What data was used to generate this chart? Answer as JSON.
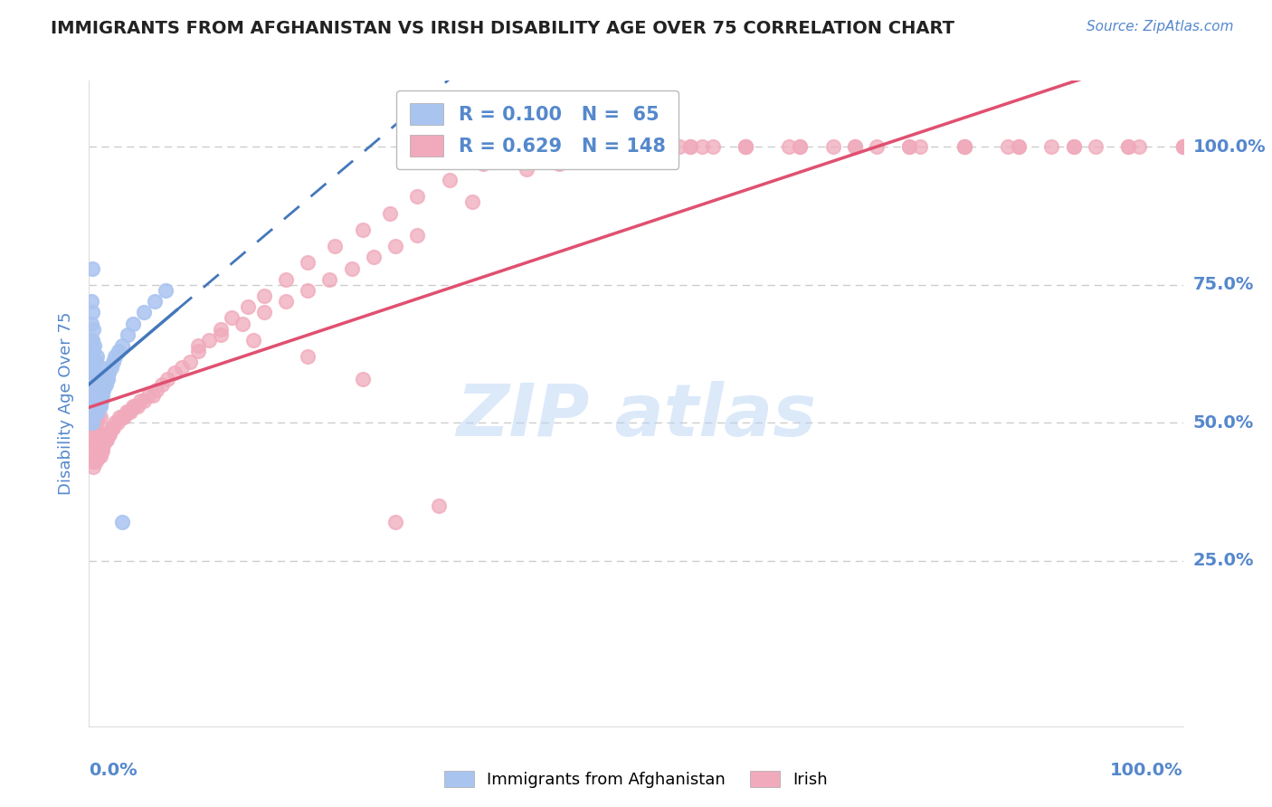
{
  "title": "IMMIGRANTS FROM AFGHANISTAN VS IRISH DISABILITY AGE OVER 75 CORRELATION CHART",
  "source_text": "Source: ZipAtlas.com",
  "ylabel": "Disability Age Over 75",
  "blue_R": 0.1,
  "blue_N": 65,
  "pink_R": 0.629,
  "pink_N": 148,
  "blue_color": "#aac4f0",
  "pink_color": "#f0aabb",
  "blue_trend_color": "#4477bb",
  "pink_trend_color": "#e05070",
  "watermark_color": "#b8d4f5",
  "ytick_labels": [
    "25.0%",
    "50.0%",
    "75.0%",
    "100.0%"
  ],
  "ytick_values": [
    0.25,
    0.5,
    0.75,
    1.0
  ],
  "xlim": [
    0.0,
    1.0
  ],
  "ylim": [
    -0.05,
    1.12
  ],
  "background_color": "#ffffff",
  "grid_color": "#cccccc",
  "title_color": "#222222",
  "axis_label_color": "#5588cc",
  "tick_label_color": "#5588cc",
  "blue_x": [
    0.001,
    0.001,
    0.001,
    0.002,
    0.002,
    0.002,
    0.002,
    0.002,
    0.002,
    0.002,
    0.002,
    0.003,
    0.003,
    0.003,
    0.003,
    0.003,
    0.003,
    0.003,
    0.004,
    0.004,
    0.004,
    0.004,
    0.004,
    0.004,
    0.005,
    0.005,
    0.005,
    0.005,
    0.005,
    0.006,
    0.006,
    0.006,
    0.006,
    0.007,
    0.007,
    0.007,
    0.007,
    0.008,
    0.008,
    0.008,
    0.009,
    0.009,
    0.01,
    0.01,
    0.01,
    0.011,
    0.012,
    0.013,
    0.014,
    0.015,
    0.016,
    0.017,
    0.018,
    0.02,
    0.022,
    0.024,
    0.027,
    0.03,
    0.035,
    0.04,
    0.05,
    0.06,
    0.07,
    0.03,
    0.003
  ],
  "blue_y": [
    0.52,
    0.55,
    0.58,
    0.5,
    0.53,
    0.56,
    0.59,
    0.62,
    0.65,
    0.68,
    0.72,
    0.5,
    0.53,
    0.56,
    0.59,
    0.62,
    0.65,
    0.7,
    0.51,
    0.54,
    0.57,
    0.6,
    0.63,
    0.67,
    0.52,
    0.55,
    0.58,
    0.61,
    0.64,
    0.52,
    0.55,
    0.58,
    0.61,
    0.52,
    0.55,
    0.58,
    0.62,
    0.52,
    0.55,
    0.59,
    0.53,
    0.56,
    0.53,
    0.56,
    0.6,
    0.54,
    0.55,
    0.56,
    0.57,
    0.57,
    0.58,
    0.58,
    0.59,
    0.6,
    0.61,
    0.62,
    0.63,
    0.64,
    0.66,
    0.68,
    0.7,
    0.72,
    0.74,
    0.32,
    0.78
  ],
  "pink_x": [
    0.001,
    0.001,
    0.001,
    0.002,
    0.002,
    0.002,
    0.002,
    0.002,
    0.003,
    0.003,
    0.003,
    0.003,
    0.004,
    0.004,
    0.004,
    0.004,
    0.005,
    0.005,
    0.005,
    0.005,
    0.006,
    0.006,
    0.006,
    0.007,
    0.007,
    0.007,
    0.008,
    0.008,
    0.008,
    0.009,
    0.009,
    0.01,
    0.01,
    0.01,
    0.011,
    0.012,
    0.012,
    0.013,
    0.014,
    0.015,
    0.016,
    0.017,
    0.018,
    0.019,
    0.02,
    0.021,
    0.022,
    0.024,
    0.026,
    0.028,
    0.03,
    0.032,
    0.034,
    0.036,
    0.038,
    0.04,
    0.042,
    0.044,
    0.047,
    0.05,
    0.054,
    0.058,
    0.062,
    0.067,
    0.072,
    0.078,
    0.085,
    0.092,
    0.1,
    0.11,
    0.12,
    0.13,
    0.145,
    0.16,
    0.18,
    0.2,
    0.225,
    0.25,
    0.275,
    0.3,
    0.33,
    0.36,
    0.39,
    0.42,
    0.45,
    0.48,
    0.51,
    0.54,
    0.57,
    0.6,
    0.64,
    0.68,
    0.72,
    0.76,
    0.8,
    0.84,
    0.88,
    0.92,
    0.96,
    1.0,
    0.6,
    0.65,
    0.7,
    0.75,
    0.8,
    0.85,
    0.9,
    0.95,
    1.0,
    1.0,
    0.6,
    0.65,
    0.7,
    0.75,
    0.8,
    0.85,
    0.9,
    0.95,
    1.0,
    0.55,
    0.5,
    0.45,
    0.4,
    0.35,
    0.55,
    0.28,
    0.32,
    0.15,
    0.2,
    0.25,
    0.1,
    0.12,
    0.14,
    0.16,
    0.18,
    0.2,
    0.22,
    0.24,
    0.26,
    0.28,
    0.3,
    0.35,
    0.4,
    0.45,
    0.5,
    0.56,
    0.43,
    0.48
  ],
  "pink_y": [
    0.46,
    0.49,
    0.52,
    0.44,
    0.47,
    0.5,
    0.53,
    0.56,
    0.43,
    0.46,
    0.49,
    0.52,
    0.42,
    0.45,
    0.48,
    0.51,
    0.43,
    0.46,
    0.49,
    0.52,
    0.43,
    0.46,
    0.5,
    0.44,
    0.47,
    0.5,
    0.44,
    0.47,
    0.51,
    0.44,
    0.48,
    0.44,
    0.47,
    0.51,
    0.45,
    0.45,
    0.48,
    0.46,
    0.47,
    0.47,
    0.47,
    0.48,
    0.48,
    0.48,
    0.49,
    0.49,
    0.49,
    0.5,
    0.5,
    0.51,
    0.51,
    0.51,
    0.52,
    0.52,
    0.52,
    0.53,
    0.53,
    0.53,
    0.54,
    0.54,
    0.55,
    0.55,
    0.56,
    0.57,
    0.58,
    0.59,
    0.6,
    0.61,
    0.63,
    0.65,
    0.67,
    0.69,
    0.71,
    0.73,
    0.76,
    0.79,
    0.82,
    0.85,
    0.88,
    0.91,
    0.94,
    0.97,
    1.0,
    1.0,
    1.0,
    1.0,
    1.0,
    1.0,
    1.0,
    1.0,
    1.0,
    1.0,
    1.0,
    1.0,
    1.0,
    1.0,
    1.0,
    1.0,
    1.0,
    1.0,
    1.0,
    1.0,
    1.0,
    1.0,
    1.0,
    1.0,
    1.0,
    1.0,
    1.0,
    1.0,
    1.0,
    1.0,
    1.0,
    1.0,
    1.0,
    1.0,
    1.0,
    1.0,
    1.0,
    1.0,
    1.0,
    1.0,
    1.0,
    1.0,
    1.0,
    0.32,
    0.35,
    0.65,
    0.62,
    0.58,
    0.64,
    0.66,
    0.68,
    0.7,
    0.72,
    0.74,
    0.76,
    0.78,
    0.8,
    0.82,
    0.84,
    0.9,
    0.96,
    1.0,
    1.0,
    1.0,
    0.97,
    0.98
  ]
}
